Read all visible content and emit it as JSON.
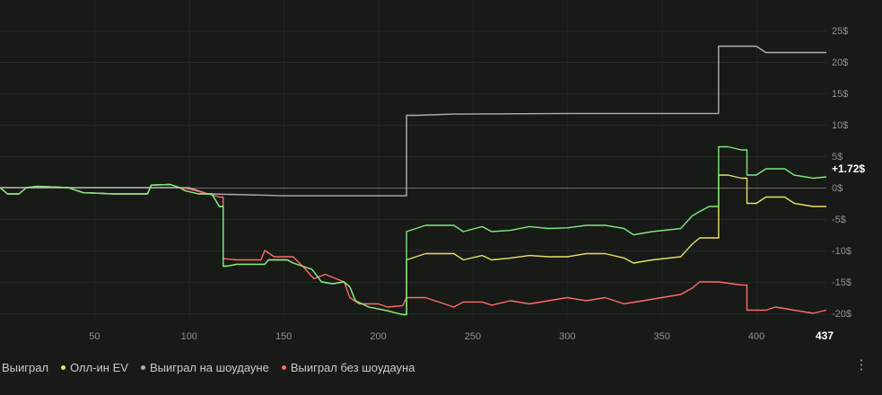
{
  "chart_data": {
    "type": "line",
    "xlim": [
      0,
      437
    ],
    "ylim": [
      -20,
      25
    ],
    "x_ticks": [
      50,
      100,
      150,
      200,
      250,
      300,
      350,
      400
    ],
    "x_tick_labels": [
      "50",
      "100",
      "150",
      "200",
      "250",
      "300",
      "350",
      "400"
    ],
    "last_x_label": "437",
    "y_ticks": [
      25,
      20,
      15,
      10,
      5,
      0,
      -5,
      -10,
      -15,
      -20
    ],
    "y_tick_labels": [
      "25$",
      "20$",
      "15$",
      "10$",
      "5$",
      "0$",
      "-5$",
      "-10$",
      "-15$",
      "-20$"
    ],
    "last_value_label": "+1.72$",
    "grid": true,
    "legend_position": "bottom-left",
    "series": [
      {
        "name": "Выиграл",
        "color": "#7ee87e",
        "points": [
          [
            0,
            0
          ],
          [
            4,
            -1
          ],
          [
            10,
            -1
          ],
          [
            14,
            0
          ],
          [
            20,
            0.2
          ],
          [
            36,
            0
          ],
          [
            44,
            -0.8
          ],
          [
            60,
            -1
          ],
          [
            78,
            -1
          ],
          [
            80,
            0.4
          ],
          [
            90,
            0.5
          ],
          [
            95,
            0
          ],
          [
            98,
            -0.5
          ],
          [
            105,
            -1
          ],
          [
            112,
            -1
          ],
          [
            116,
            -3
          ],
          [
            118,
            -12.5
          ],
          [
            120,
            -12.5
          ],
          [
            125,
            -12.2
          ],
          [
            140,
            -12.2
          ],
          [
            142,
            -11.5
          ],
          [
            152,
            -11.5
          ],
          [
            155,
            -12
          ],
          [
            165,
            -13
          ],
          [
            170,
            -15
          ],
          [
            176,
            -15.3
          ],
          [
            182,
            -15
          ],
          [
            185,
            -15.8
          ],
          [
            188,
            -18
          ],
          [
            195,
            -19
          ],
          [
            205,
            -19.6
          ],
          [
            210,
            -20
          ],
          [
            213,
            -20.2
          ],
          [
            215,
            -7
          ],
          [
            220,
            -6.5
          ],
          [
            225,
            -6
          ],
          [
            240,
            -6
          ],
          [
            245,
            -7
          ],
          [
            255,
            -6.2
          ],
          [
            260,
            -7
          ],
          [
            270,
            -6.8
          ],
          [
            280,
            -6.2
          ],
          [
            290,
            -6.5
          ],
          [
            300,
            -6.4
          ],
          [
            310,
            -6
          ],
          [
            320,
            -6
          ],
          [
            330,
            -6.5
          ],
          [
            335,
            -7.5
          ],
          [
            345,
            -7
          ],
          [
            360,
            -6.5
          ],
          [
            366,
            -4.5
          ],
          [
            370,
            -3.8
          ],
          [
            375,
            -3
          ],
          [
            380,
            6.5
          ],
          [
            385,
            6.5
          ],
          [
            392,
            6
          ],
          [
            395,
            2
          ],
          [
            400,
            2
          ],
          [
            405,
            3
          ],
          [
            415,
            3
          ],
          [
            420,
            2
          ],
          [
            430,
            1.5
          ],
          [
            437,
            1.72
          ]
        ]
      },
      {
        "name": "Олл-ин EV",
        "color": "#e8e06a",
        "points": [
          [
            0,
            0
          ],
          [
            4,
            -1
          ],
          [
            10,
            -1
          ],
          [
            14,
            0
          ],
          [
            20,
            0.2
          ],
          [
            36,
            0
          ],
          [
            44,
            -0.8
          ],
          [
            60,
            -1
          ],
          [
            78,
            -1
          ],
          [
            80,
            0.4
          ],
          [
            90,
            0.5
          ],
          [
            95,
            0
          ],
          [
            98,
            -0.5
          ],
          [
            105,
            -1
          ],
          [
            112,
            -1
          ],
          [
            116,
            -3
          ],
          [
            118,
            -12.5
          ],
          [
            120,
            -12.5
          ],
          [
            125,
            -12.2
          ],
          [
            140,
            -12.2
          ],
          [
            142,
            -11.5
          ],
          [
            152,
            -11.5
          ],
          [
            155,
            -12
          ],
          [
            165,
            -13
          ],
          [
            170,
            -15
          ],
          [
            176,
            -15.3
          ],
          [
            182,
            -15
          ],
          [
            185,
            -15.8
          ],
          [
            188,
            -18
          ],
          [
            195,
            -19
          ],
          [
            205,
            -19.6
          ],
          [
            210,
            -20
          ],
          [
            213,
            -20.2
          ],
          [
            215,
            -11.5
          ],
          [
            220,
            -11
          ],
          [
            225,
            -10.5
          ],
          [
            240,
            -10.5
          ],
          [
            245,
            -11.5
          ],
          [
            255,
            -10.8
          ],
          [
            260,
            -11.5
          ],
          [
            270,
            -11.2
          ],
          [
            280,
            -10.8
          ],
          [
            290,
            -11
          ],
          [
            300,
            -11
          ],
          [
            310,
            -10.5
          ],
          [
            320,
            -10.5
          ],
          [
            330,
            -11.2
          ],
          [
            335,
            -12
          ],
          [
            345,
            -11.5
          ],
          [
            360,
            -11
          ],
          [
            366,
            -9
          ],
          [
            370,
            -8
          ],
          [
            375,
            -8
          ],
          [
            380,
            2
          ],
          [
            385,
            2
          ],
          [
            392,
            1.5
          ],
          [
            395,
            -2.5
          ],
          [
            400,
            -2.5
          ],
          [
            405,
            -1.5
          ],
          [
            415,
            -1.5
          ],
          [
            420,
            -2.5
          ],
          [
            430,
            -3
          ],
          [
            437,
            -3
          ]
        ]
      },
      {
        "name": "Выиграл на шоудауне",
        "color": "#b0b0b0",
        "points": [
          [
            0,
            0
          ],
          [
            100,
            0
          ],
          [
            110,
            -1
          ],
          [
            140,
            -1.2
          ],
          [
            150,
            -1.3
          ],
          [
            214,
            -1.3
          ],
          [
            215,
            11.5
          ],
          [
            220,
            11.5
          ],
          [
            240,
            11.7
          ],
          [
            300,
            11.8
          ],
          [
            360,
            11.8
          ],
          [
            379,
            11.8
          ],
          [
            380,
            22.5
          ],
          [
            400,
            22.5
          ],
          [
            405,
            21.5
          ],
          [
            437,
            21.5
          ]
        ]
      },
      {
        "name": "Выиграл без шоудауна",
        "color": "#ff6b6b",
        "points": [
          [
            0,
            0
          ],
          [
            4,
            -1
          ],
          [
            10,
            -1
          ],
          [
            14,
            0
          ],
          [
            20,
            0.2
          ],
          [
            36,
            0
          ],
          [
            44,
            -0.8
          ],
          [
            60,
            -1
          ],
          [
            78,
            -1
          ],
          [
            80,
            0.4
          ],
          [
            90,
            0.5
          ],
          [
            95,
            0
          ],
          [
            100,
            -0.2
          ],
          [
            110,
            -1
          ],
          [
            116,
            -1.5
          ],
          [
            118,
            -11.3
          ],
          [
            125,
            -11.5
          ],
          [
            138,
            -11.5
          ],
          [
            140,
            -10
          ],
          [
            145,
            -11
          ],
          [
            155,
            -11
          ],
          [
            160,
            -12.5
          ],
          [
            166,
            -14.5
          ],
          [
            172,
            -13.8
          ],
          [
            182,
            -15
          ],
          [
            185,
            -17.5
          ],
          [
            190,
            -18.5
          ],
          [
            200,
            -18.5
          ],
          [
            205,
            -19
          ],
          [
            213,
            -18.8
          ],
          [
            215,
            -17.5
          ],
          [
            225,
            -17.5
          ],
          [
            230,
            -18
          ],
          [
            240,
            -19
          ],
          [
            245,
            -18.2
          ],
          [
            255,
            -18.2
          ],
          [
            260,
            -18.7
          ],
          [
            270,
            -18
          ],
          [
            280,
            -18.5
          ],
          [
            290,
            -18
          ],
          [
            300,
            -17.5
          ],
          [
            310,
            -18
          ],
          [
            320,
            -17.5
          ],
          [
            330,
            -18.5
          ],
          [
            340,
            -18
          ],
          [
            350,
            -17.5
          ],
          [
            360,
            -17
          ],
          [
            366,
            -16
          ],
          [
            370,
            -15
          ],
          [
            380,
            -15
          ],
          [
            392,
            -15.5
          ],
          [
            395,
            -19.5
          ],
          [
            405,
            -19.5
          ],
          [
            410,
            -19
          ],
          [
            420,
            -19.5
          ],
          [
            430,
            -20
          ],
          [
            437,
            -19.5
          ]
        ]
      }
    ]
  },
  "legend": {
    "items": [
      {
        "label": "Выиграл",
        "color": "#7ee87e"
      },
      {
        "label": "Олл-ин EV",
        "color": "#e8e06a"
      },
      {
        "label": "Выиграл на шоудауне",
        "color": "#b0b0b0"
      },
      {
        "label": "Выиграл без шоудауна",
        "color": "#ff6b6b"
      }
    ]
  },
  "menu": {
    "icon": "more-vertical-icon",
    "glyph": "⋮"
  }
}
